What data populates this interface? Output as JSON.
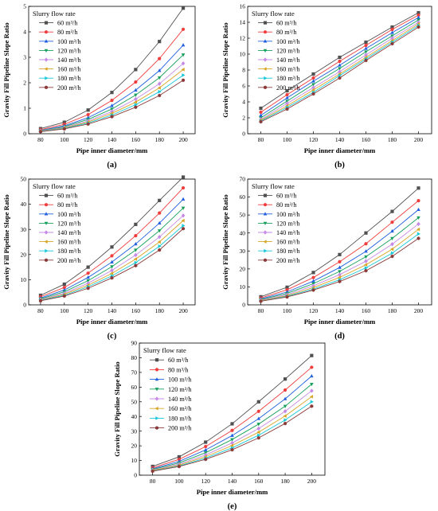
{
  "figure": {
    "panels_order": [
      "a",
      "b",
      "c",
      "d",
      "e"
    ]
  },
  "chart_data": [
    {
      "panel": "(a)",
      "type": "line",
      "xlabel": "Pipe inner diameter/mm",
      "ylabel": "Gravity Fill Pipeline Slope Ratio",
      "legend_title": "Slurry flow rate",
      "legend_position": "top-left",
      "grid": false,
      "x": [
        80,
        100,
        120,
        140,
        160,
        180,
        200
      ],
      "xlim": [
        70,
        210
      ],
      "ylim": [
        0,
        5
      ],
      "yticks": [
        0,
        1,
        2,
        3,
        4,
        5
      ],
      "series": [
        {
          "name": "60 m³/h",
          "color": "#505050",
          "marker": "square",
          "values": [
            0.2,
            0.45,
            0.93,
            1.62,
            2.52,
            3.62,
            4.93
          ]
        },
        {
          "name": "80 m³/h",
          "color": "#f03c3c",
          "marker": "circle",
          "values": [
            0.16,
            0.37,
            0.75,
            1.31,
            2.03,
            2.95,
            4.1
          ]
        },
        {
          "name": "100 m³/h",
          "color": "#1f5fe0",
          "marker": "triangle-up",
          "values": [
            0.13,
            0.31,
            0.63,
            1.1,
            1.71,
            2.48,
            3.48
          ]
        },
        {
          "name": "120 m³/h",
          "color": "#16a05c",
          "marker": "triangle-down",
          "values": [
            0.12,
            0.28,
            0.56,
            0.97,
            1.52,
            2.2,
            3.1
          ]
        },
        {
          "name": "140 m³/h",
          "color": "#c58ae6",
          "marker": "diamond",
          "values": [
            0.11,
            0.25,
            0.5,
            0.87,
            1.36,
            1.96,
            2.76
          ]
        },
        {
          "name": "160 m³/h",
          "color": "#d8a626",
          "marker": "triangle-left",
          "values": [
            0.1,
            0.23,
            0.46,
            0.8,
            1.24,
            1.8,
            2.52
          ]
        },
        {
          "name": "180 m³/h",
          "color": "#16c8d8",
          "marker": "triangle-right",
          "values": [
            0.09,
            0.21,
            0.42,
            0.73,
            1.14,
            1.65,
            2.3
          ]
        },
        {
          "name": "200 m³/h",
          "color": "#8b3a3a",
          "marker": "hexagon",
          "values": [
            0.08,
            0.19,
            0.38,
            0.67,
            1.04,
            1.5,
            2.1
          ]
        }
      ]
    },
    {
      "panel": "(b)",
      "type": "line",
      "xlabel": "Pipe inner diameter/mm",
      "ylabel": "Gravity Fill Pipeline Slope Ratio",
      "legend_title": "Slurry flow rate",
      "legend_position": "top-left",
      "grid": false,
      "x": [
        80,
        100,
        120,
        140,
        160,
        180,
        200
      ],
      "xlim": [
        70,
        210
      ],
      "ylim": [
        0,
        16
      ],
      "yticks": [
        0,
        2,
        4,
        6,
        8,
        10,
        12,
        14,
        16
      ],
      "series": [
        {
          "name": "60 m³/h",
          "color": "#505050",
          "marker": "square",
          "values": [
            3.2,
            5.4,
            7.5,
            9.6,
            11.5,
            13.4,
            15.2
          ]
        },
        {
          "name": "80 m³/h",
          "color": "#f03c3c",
          "marker": "circle",
          "values": [
            2.7,
            4.9,
            7.0,
            9.1,
            11.1,
            13.1,
            14.9
          ]
        },
        {
          "name": "100 m³/h",
          "color": "#1f5fe0",
          "marker": "triangle-up",
          "values": [
            2.3,
            4.5,
            6.6,
            8.6,
            10.7,
            12.7,
            14.6
          ]
        },
        {
          "name": "120 m³/h",
          "color": "#16a05c",
          "marker": "triangle-down",
          "values": [
            2.0,
            4.1,
            6.2,
            8.2,
            10.3,
            12.3,
            14.3
          ]
        },
        {
          "name": "140 m³/h",
          "color": "#c58ae6",
          "marker": "diamond",
          "values": [
            1.8,
            3.8,
            5.8,
            7.8,
            9.9,
            12.0,
            14.0
          ]
        },
        {
          "name": "160 m³/h",
          "color": "#d8a626",
          "marker": "triangle-left",
          "values": [
            1.7,
            3.5,
            5.5,
            7.5,
            9.6,
            11.7,
            13.8
          ]
        },
        {
          "name": "180 m³/h",
          "color": "#16c8d8",
          "marker": "triangle-right",
          "values": [
            1.6,
            3.3,
            5.2,
            7.3,
            9.4,
            11.5,
            13.6
          ]
        },
        {
          "name": "200 m³/h",
          "color": "#8b3a3a",
          "marker": "hexagon",
          "values": [
            1.5,
            3.1,
            5.0,
            7.0,
            9.2,
            11.3,
            13.4
          ]
        }
      ]
    },
    {
      "panel": "(c)",
      "type": "line",
      "xlabel": "Pipe inner diameter/mm",
      "ylabel": "Gravity Fill Pipeline Slope Ratio",
      "legend_title": "Slurry flow rate",
      "legend_position": "top-left",
      "grid": false,
      "x": [
        80,
        100,
        120,
        140,
        160,
        180,
        200
      ],
      "xlim": [
        70,
        210
      ],
      "ylim": [
        0,
        50
      ],
      "yticks": [
        0,
        10,
        20,
        30,
        40,
        50
      ],
      "series": [
        {
          "name": "60 m³/h",
          "color": "#505050",
          "marker": "square",
          "values": [
            3.8,
            8.2,
            15.0,
            23.0,
            32.0,
            41.5,
            50.8
          ]
        },
        {
          "name": "80 m³/h",
          "color": "#f03c3c",
          "marker": "circle",
          "values": [
            3.2,
            6.9,
            12.6,
            19.5,
            27.5,
            36.5,
            46.5
          ]
        },
        {
          "name": "100 m³/h",
          "color": "#1f5fe0",
          "marker": "triangle-up",
          "values": [
            2.7,
            5.9,
            10.9,
            17.0,
            24.2,
            32.5,
            42.0
          ]
        },
        {
          "name": "120 m³/h",
          "color": "#16a05c",
          "marker": "triangle-down",
          "values": [
            2.4,
            5.2,
            9.6,
            15.2,
            21.8,
            29.5,
            38.5
          ]
        },
        {
          "name": "140 m³/h",
          "color": "#c58ae6",
          "marker": "diamond",
          "values": [
            2.1,
            4.6,
            8.6,
            13.7,
            19.8,
            27.0,
            35.5
          ]
        },
        {
          "name": "160 m³/h",
          "color": "#d8a626",
          "marker": "triangle-left",
          "values": [
            1.9,
            4.2,
            7.8,
            12.5,
            18.2,
            25.0,
            33.5
          ]
        },
        {
          "name": "180 m³/h",
          "color": "#16c8d8",
          "marker": "triangle-right",
          "values": [
            1.75,
            3.8,
            7.2,
            11.5,
            16.8,
            23.3,
            31.5
          ]
        },
        {
          "name": "200 m³/h",
          "color": "#8b3a3a",
          "marker": "hexagon",
          "values": [
            1.6,
            3.5,
            6.6,
            10.7,
            15.6,
            21.8,
            30.3
          ]
        }
      ]
    },
    {
      "panel": "(d)",
      "type": "line",
      "xlabel": "Pipe inner diameter/mm",
      "ylabel": "Gravity Fill Pipeline Slope Ratio",
      "legend_title": "Slurry flow rate",
      "legend_position": "top-left",
      "grid": false,
      "x": [
        80,
        100,
        120,
        140,
        160,
        180,
        200
      ],
      "xlim": [
        70,
        210
      ],
      "ylim": [
        0,
        70
      ],
      "yticks": [
        0,
        10,
        20,
        30,
        40,
        50,
        60,
        70
      ],
      "series": [
        {
          "name": "60 m³/h",
          "color": "#505050",
          "marker": "square",
          "values": [
            4.5,
            9.8,
            18.0,
            28.0,
            40.0,
            52.0,
            65.0
          ]
        },
        {
          "name": "80 m³/h",
          "color": "#f03c3c",
          "marker": "circle",
          "values": [
            3.8,
            8.4,
            15.2,
            24.0,
            34.0,
            46.0,
            58.0
          ]
        },
        {
          "name": "100 m³/h",
          "color": "#1f5fe0",
          "marker": "triangle-up",
          "values": [
            3.3,
            7.2,
            13.2,
            20.8,
            29.8,
            41.0,
            53.0
          ]
        },
        {
          "name": "120 m³/h",
          "color": "#16a05c",
          "marker": "triangle-down",
          "values": [
            2.9,
            6.4,
            11.8,
            18.6,
            26.8,
            37.0,
            48.5
          ]
        },
        {
          "name": "140 m³/h",
          "color": "#c58ae6",
          "marker": "diamond",
          "values": [
            2.6,
            5.7,
            10.6,
            16.8,
            24.3,
            33.8,
            45.0
          ]
        },
        {
          "name": "160 m³/h",
          "color": "#d8a626",
          "marker": "triangle-left",
          "values": [
            2.3,
            5.2,
            9.6,
            15.3,
            22.3,
            31.0,
            42.0
          ]
        },
        {
          "name": "180 m³/h",
          "color": "#16c8d8",
          "marker": "triangle-right",
          "values": [
            2.1,
            4.8,
            8.8,
            14.0,
            20.6,
            28.8,
            39.5
          ]
        },
        {
          "name": "200 m³/h",
          "color": "#8b3a3a",
          "marker": "hexagon",
          "values": [
            2.0,
            4.4,
            8.2,
            13.0,
            19.0,
            27.0,
            37.0
          ]
        }
      ]
    },
    {
      "panel": "(e)",
      "type": "line",
      "xlabel": "Pipe inner diameter/mm",
      "ylabel": "Gravity Fill Pipeline Slope Ratio",
      "legend_title": "Slurry flow rate",
      "legend_position": "top-left",
      "grid": false,
      "x": [
        80,
        100,
        120,
        140,
        160,
        180,
        200
      ],
      "xlim": [
        70,
        210
      ],
      "ylim": [
        0,
        90
      ],
      "yticks": [
        0,
        10,
        20,
        30,
        40,
        50,
        60,
        70,
        80,
        90
      ],
      "series": [
        {
          "name": "60 m³/h",
          "color": "#505050",
          "marker": "square",
          "values": [
            6.0,
            12.5,
            22.5,
            35.0,
            50.0,
            65.5,
            81.5
          ]
        },
        {
          "name": "80 m³/h",
          "color": "#f03c3c",
          "marker": "circle",
          "values": [
            5.0,
            10.8,
            19.5,
            30.5,
            43.5,
            58.0,
            73.5
          ]
        },
        {
          "name": "100 m³/h",
          "color": "#1f5fe0",
          "marker": "triangle-up",
          "values": [
            4.4,
            9.4,
            17.2,
            27.0,
            38.5,
            52.0,
            67.5
          ]
        },
        {
          "name": "120 m³/h",
          "color": "#16a05c",
          "marker": "triangle-down",
          "values": [
            3.9,
            8.4,
            15.3,
            24.3,
            34.8,
            47.0,
            62.0
          ]
        },
        {
          "name": "140 m³/h",
          "color": "#c58ae6",
          "marker": "diamond",
          "values": [
            3.5,
            7.5,
            13.8,
            22.0,
            31.8,
            43.5,
            57.5
          ]
        },
        {
          "name": "160 m³/h",
          "color": "#d8a626",
          "marker": "triangle-left",
          "values": [
            3.2,
            6.9,
            12.6,
            20.2,
            29.3,
            40.3,
            53.5
          ]
        },
        {
          "name": "180 m³/h",
          "color": "#16c8d8",
          "marker": "triangle-right",
          "values": [
            2.9,
            6.3,
            11.6,
            18.6,
            27.2,
            37.6,
            50.0
          ]
        },
        {
          "name": "200 m³/h",
          "color": "#8b3a3a",
          "marker": "hexagon",
          "values": [
            2.7,
            5.9,
            10.8,
            17.3,
            25.4,
            35.2,
            47.0
          ]
        }
      ]
    }
  ]
}
